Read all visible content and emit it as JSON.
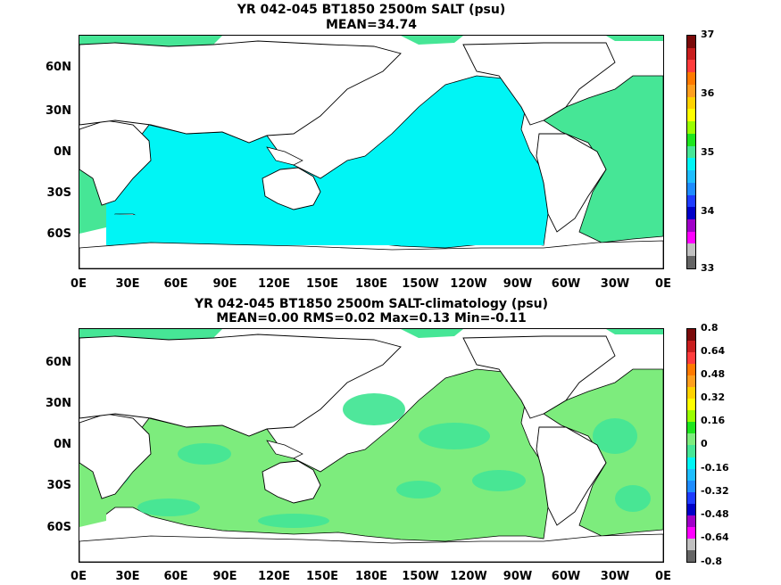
{
  "panel1": {
    "title": "YR 042-045 BT1850 2500m SALT (psu)",
    "subtitle": "MEAN=34.74",
    "lat_labels": [
      "60N",
      "30N",
      "0N",
      "30S",
      "60S"
    ],
    "lon_labels": [
      "0E",
      "30E",
      "60E",
      "90E",
      "120E",
      "150E",
      "180E",
      "150W",
      "120W",
      "90W",
      "60W",
      "30W",
      "0E"
    ],
    "colorbar_labels": [
      "37",
      "36",
      "35",
      "34",
      "33"
    ],
    "colorbar_colors": [
      "#7a0a0a",
      "#c81e1e",
      "#ff3c3c",
      "#ff7a00",
      "#ff9f1e",
      "#ffd200",
      "#ffff00",
      "#9aff00",
      "#1ee61e",
      "#46e696",
      "#00f5f5",
      "#1ebeff",
      "#1e8cff",
      "#1e3cff",
      "#0000c8",
      "#a000c8",
      "#ff00ff",
      "#c0c0c0",
      "#646464"
    ],
    "ocean_color": "#00f5f5"
  },
  "panel2": {
    "title": "YR 042-045 BT1850 2500m SALT-climatology (psu)",
    "subtitle": "MEAN=0.00   RMS=0.02   Max=0.13   Min=-0.11",
    "lat_labels": [
      "60N",
      "30N",
      "0N",
      "30S",
      "60S"
    ],
    "lon_labels": [
      "0E",
      "30E",
      "60E",
      "90E",
      "120E",
      "150E",
      "180E",
      "150W",
      "120W",
      "90W",
      "60W",
      "30W",
      "0E"
    ],
    "colorbar_labels": [
      "0.8",
      "0.64",
      "0.48",
      "0.32",
      "0.16",
      "0",
      "-0.16",
      "-0.32",
      "-0.48",
      "-0.64",
      "-0.8"
    ],
    "colorbar_colors": [
      "#7a0a0a",
      "#c81e1e",
      "#ff3c3c",
      "#ff7a00",
      "#ff9f1e",
      "#ffd200",
      "#ffff00",
      "#9aff00",
      "#1ee61e",
      "#7dec7d",
      "#46e696",
      "#00f5f5",
      "#1ebeff",
      "#1e8cff",
      "#1e3cff",
      "#0000c8",
      "#a000c8",
      "#ff00ff",
      "#c0c0c0",
      "#646464"
    ],
    "ocean_color": "#7dec7d",
    "ocean_color_alt": "#46e696"
  }
}
